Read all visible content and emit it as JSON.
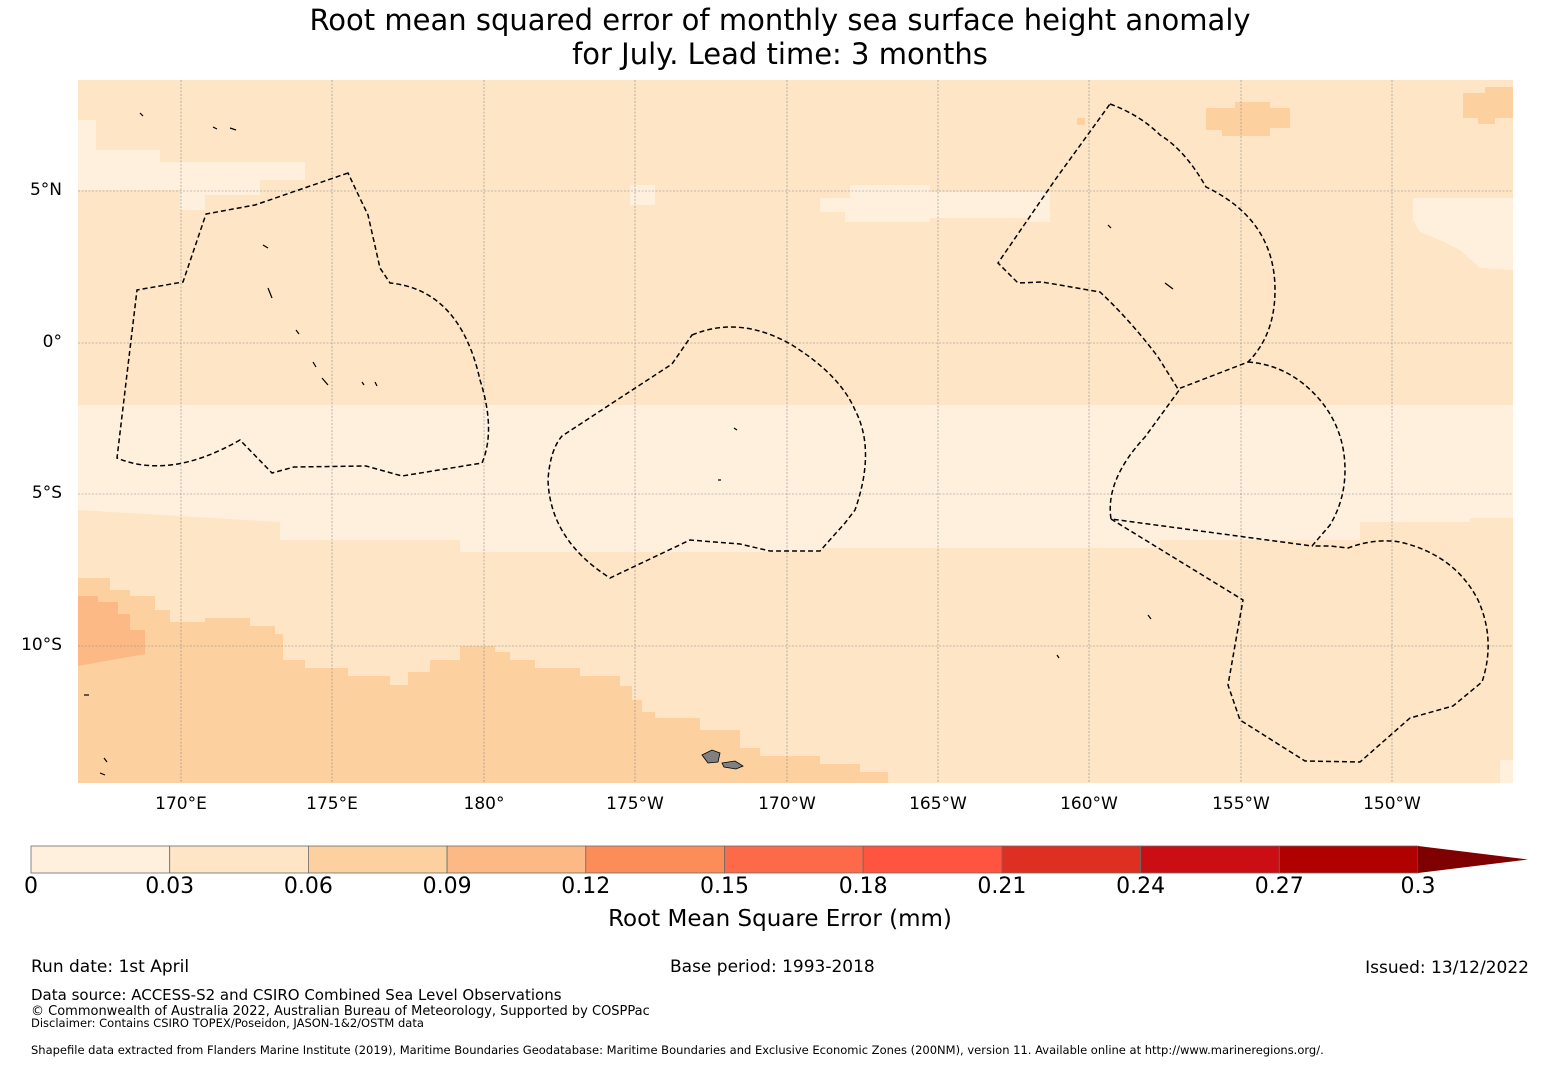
{
  "title": {
    "line1": "Root mean squared error of monthly sea surface height anomaly",
    "line2": "for July. Lead time: 3 months"
  },
  "map": {
    "latitude_labels": [
      "5°N",
      "0°",
      "5°S",
      "10°S"
    ],
    "longitude_labels": [
      "170°E",
      "175°E",
      "180°",
      "175°W",
      "170°W",
      "165°W",
      "160°W",
      "155°W",
      "150°W"
    ],
    "colors": {
      "band_0_003": "#fff0de",
      "band_003_006": "#fde5c6",
      "band_006_009": "#fcd19f",
      "band_009_012": "#fcb885",
      "eez_boundary": "#000000",
      "land": "#808080",
      "gridline": "#8c8c8c"
    }
  },
  "colorbar": {
    "title": "Root Mean Square Error (mm)",
    "ticks": [
      "0",
      "0.03",
      "0.06",
      "0.09",
      "0.12",
      "0.15",
      "0.18",
      "0.21",
      "0.24",
      "0.27",
      "0.3"
    ],
    "colors": [
      "#fff0de",
      "#fde5c6",
      "#fcd19f",
      "#fcb885",
      "#fc8d59",
      "#fd6a4a",
      "#fe5440",
      "#de2f22",
      "#cb0e13",
      "#b00000",
      "#7f0000"
    ],
    "extend": "max"
  },
  "footer": {
    "run_date": "Run date: 1st April",
    "base_period": "Base period: 1993-2018",
    "issued": "Issued: 13/12/2022",
    "data_source": "Data source: ACCESS-S2 and CSIRO Combined Sea Level Observations",
    "copyright": "© Commonwealth of Australia 2022, Australian Bureau of Meteorology, Supported by COSPPac",
    "disclaimer": "Disclaimer: Contains CSIRO TOPEX/Poseidon, JASON-1&2/OSTM data",
    "shapefile": "Shapefile data extracted from Flanders Marine Institute (2019), Maritime Boundaries Geodatabase: Maritime Boundaries and Exclusive Economic Zones (200NM), version 11. Available online at http://www.marineregions.org/."
  }
}
